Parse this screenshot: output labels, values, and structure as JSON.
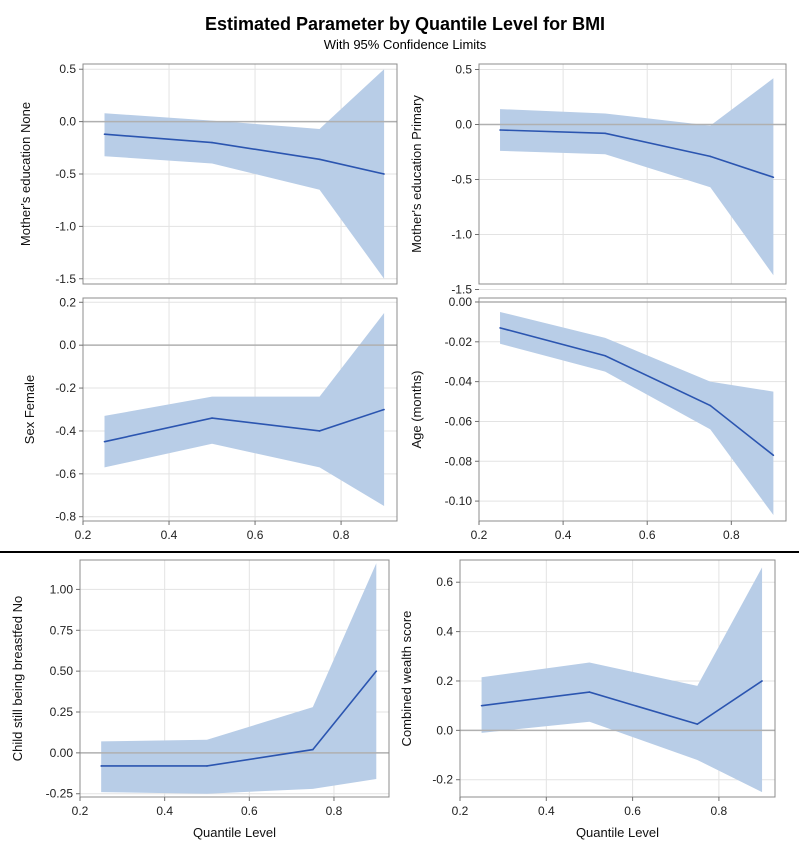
{
  "title": "Estimated Parameter by Quantile Level for BMI",
  "subtitle": "With 95% Confidence Limits",
  "colors": {
    "band": "#b8cde7",
    "line": "#2b55b0",
    "reference": "#b0b0b0",
    "frame": "#8c8c8c",
    "grid": "#e3e3e3"
  },
  "chart_data": [
    {
      "type": "area",
      "ylabel": "Mother's education None",
      "xlim": [
        0.2,
        0.93
      ],
      "ylim": [
        -1.55,
        0.55
      ],
      "xticks": [
        "0.2",
        "0.4",
        "0.6",
        "0.8"
      ],
      "yticks": [
        "0.5",
        "0.0",
        "-0.5",
        "-1.0",
        "-1.5"
      ],
      "x": [
        0.25,
        0.5,
        0.75,
        0.9
      ],
      "estimate": [
        -0.12,
        -0.2,
        -0.36,
        -0.5
      ],
      "lower": [
        -0.33,
        -0.4,
        -0.65,
        -1.5
      ],
      "upper": [
        0.08,
        0.01,
        -0.07,
        0.5
      ],
      "grid": true,
      "reference_line": 0
    },
    {
      "type": "area",
      "ylabel": "Mother's education Primary",
      "xlim": [
        0.2,
        0.93
      ],
      "ylim": [
        -1.45,
        0.55
      ],
      "xticks": [
        "0.2",
        "0.4",
        "0.6",
        "0.8"
      ],
      "yticks": [
        "0.5",
        "0.0",
        "-0.5",
        "-1.0",
        "-1.5"
      ],
      "x": [
        0.25,
        0.5,
        0.75,
        0.9
      ],
      "estimate": [
        -0.05,
        -0.08,
        -0.29,
        -0.48
      ],
      "lower": [
        -0.24,
        -0.27,
        -0.57,
        -1.37
      ],
      "upper": [
        0.14,
        0.1,
        -0.01,
        0.42
      ],
      "grid": true,
      "reference_line": 0
    },
    {
      "type": "area",
      "ylabel": "Sex Female",
      "xlim": [
        0.2,
        0.93
      ],
      "ylim": [
        -0.82,
        0.22
      ],
      "xticks": [
        "0.2",
        "0.4",
        "0.6",
        "0.8"
      ],
      "yticks": [
        "0.2",
        "0.0",
        "-0.2",
        "-0.4",
        "-0.6",
        "-0.8"
      ],
      "x": [
        0.25,
        0.5,
        0.75,
        0.9
      ],
      "estimate": [
        -0.45,
        -0.34,
        -0.4,
        -0.3
      ],
      "lower": [
        -0.57,
        -0.46,
        -0.57,
        -0.75
      ],
      "upper": [
        -0.33,
        -0.24,
        -0.24,
        0.15
      ],
      "grid": true,
      "reference_line": 0
    },
    {
      "type": "area",
      "ylabel": "Age (months)",
      "xlim": [
        0.2,
        0.93
      ],
      "ylim": [
        -0.11,
        0.002
      ],
      "xticks": [
        "0.2",
        "0.4",
        "0.6",
        "0.8"
      ],
      "yticks": [
        "0.00",
        "-0.02",
        "-0.04",
        "-0.06",
        "-0.08",
        "-0.10"
      ],
      "x": [
        0.25,
        0.5,
        0.75,
        0.9
      ],
      "estimate": [
        -0.013,
        -0.027,
        -0.052,
        -0.077
      ],
      "lower": [
        -0.021,
        -0.035,
        -0.064,
        -0.107
      ],
      "upper": [
        -0.005,
        -0.018,
        -0.04,
        -0.045
      ],
      "grid": true,
      "reference_line": 0
    },
    {
      "type": "area",
      "ylabel": "Child still being breastfed No",
      "xlabel": "Quantile Level",
      "xlim": [
        0.2,
        0.93
      ],
      "ylim": [
        -0.27,
        1.18
      ],
      "xticks": [
        "0.2",
        "0.4",
        "0.6",
        "0.8"
      ],
      "yticks": [
        "1.00",
        "0.75",
        "0.50",
        "0.25",
        "0.00",
        "-0.25"
      ],
      "x": [
        0.25,
        0.5,
        0.75,
        0.9
      ],
      "estimate": [
        -0.08,
        -0.08,
        0.02,
        0.5
      ],
      "lower": [
        -0.24,
        -0.25,
        -0.22,
        -0.16
      ],
      "upper": [
        0.07,
        0.08,
        0.28,
        1.16
      ],
      "grid": true,
      "reference_line": 0
    },
    {
      "type": "area",
      "ylabel": "Combined wealth score",
      "xlabel": "Quantile Level",
      "xlim": [
        0.2,
        0.93
      ],
      "ylim": [
        -0.27,
        0.69
      ],
      "xticks": [
        "0.2",
        "0.4",
        "0.6",
        "0.8"
      ],
      "yticks": [
        "0.6",
        "0.4",
        "0.2",
        "0.0",
        "-0.2"
      ],
      "x": [
        0.25,
        0.5,
        0.75,
        0.9
      ],
      "estimate": [
        0.1,
        0.155,
        0.025,
        0.2
      ],
      "lower": [
        -0.01,
        0.035,
        -0.12,
        -0.25
      ],
      "upper": [
        0.215,
        0.275,
        0.18,
        0.66
      ],
      "grid": true,
      "reference_line": 0
    }
  ]
}
